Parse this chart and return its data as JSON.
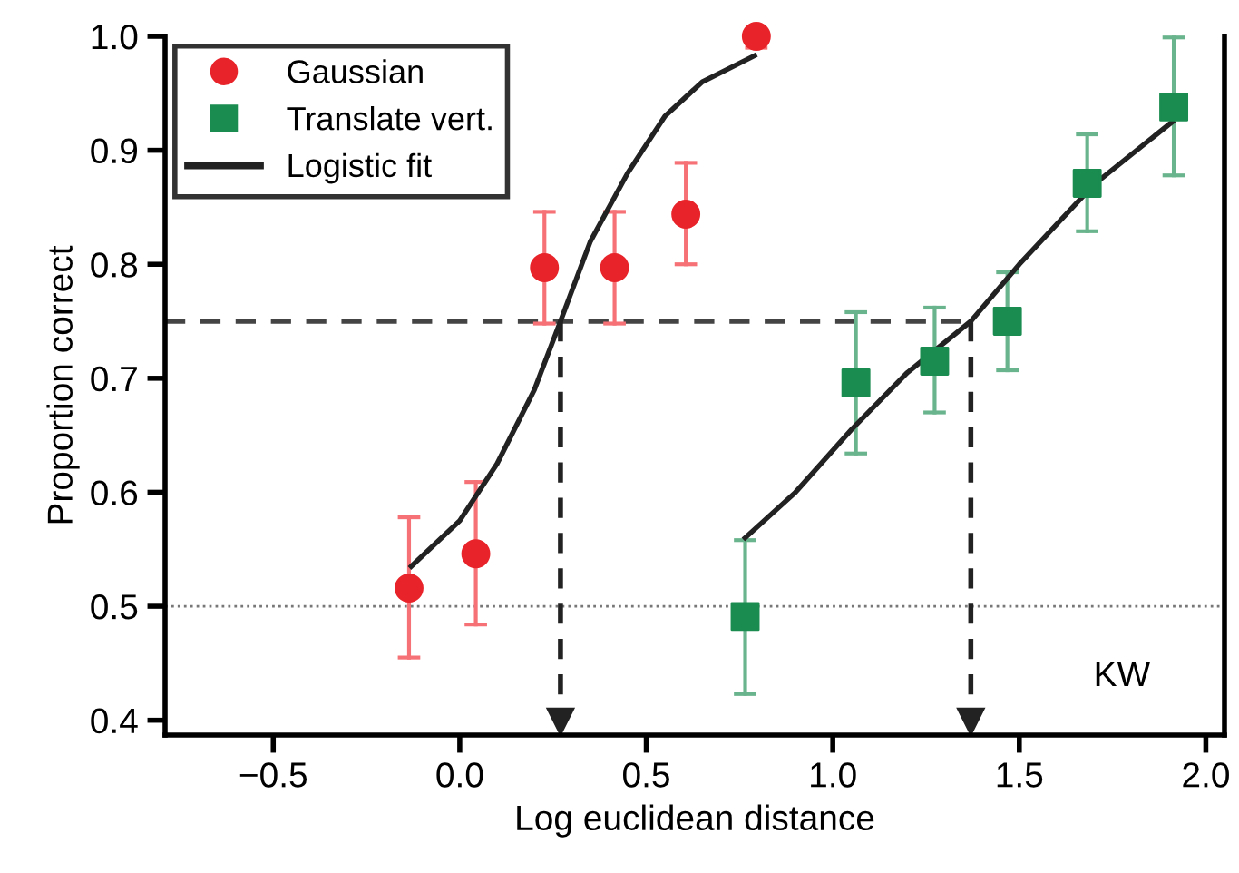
{
  "chart_data": {
    "type": "scatter",
    "xlabel": "Log euclidean distance",
    "ylabel": "Proportion correct",
    "xlim": [
      -0.79,
      2.05
    ],
    "ylim": [
      0.387,
      1.0
    ],
    "xticks": [
      {
        "value": -0.5,
        "label": "−0.5"
      },
      {
        "value": 0.0,
        "label": "0.0"
      },
      {
        "value": 0.5,
        "label": "0.5"
      },
      {
        "value": 1.0,
        "label": "1.0"
      },
      {
        "value": 1.5,
        "label": "1.5"
      },
      {
        "value": 2.0,
        "label": "2.0"
      }
    ],
    "yticks": [
      {
        "value": 0.4,
        "label": "0.4"
      },
      {
        "value": 0.5,
        "label": "0.5"
      },
      {
        "value": 0.6,
        "label": "0.6"
      },
      {
        "value": 0.7,
        "label": "0.7"
      },
      {
        "value": 0.8,
        "label": "0.8"
      },
      {
        "value": 0.9,
        "label": "0.9"
      },
      {
        "value": 1.0,
        "label": "1.0"
      }
    ],
    "grid": false,
    "legend": "top left",
    "series": [
      {
        "name": "Gaussian",
        "marker": "circle",
        "color": "#e8242a",
        "x": [
          -0.136,
          0.043,
          0.227,
          0.415,
          0.606,
          0.795
        ],
        "values": [
          0.516,
          0.546,
          0.797,
          0.797,
          0.844,
          1.0
        ],
        "errors": [
          [
            0.455,
            0.578
          ],
          [
            0.484,
            0.609
          ],
          [
            0.748,
            0.846
          ],
          [
            0.748,
            0.846
          ],
          [
            0.8,
            0.889
          ],
          [
            0.99,
            1.0
          ]
        ]
      },
      {
        "name": "Translate vert.",
        "marker": "square",
        "color": "#1a8c50",
        "x": [
          0.765,
          1.062,
          1.273,
          1.468,
          1.682,
          1.914
        ],
        "values": [
          0.491,
          0.696,
          0.715,
          0.75,
          0.871,
          0.938
        ],
        "errors": [
          [
            0.423,
            0.558
          ],
          [
            0.634,
            0.758
          ],
          [
            0.67,
            0.762
          ],
          [
            0.707,
            0.793
          ],
          [
            0.829,
            0.914
          ],
          [
            0.878,
            0.999
          ]
        ]
      },
      {
        "name": "Logistic fit",
        "type": "line",
        "marker": "none",
        "color": "#222222",
        "x": [
          -0.13,
          0.0,
          0.1,
          0.2,
          0.27,
          0.35,
          0.45,
          0.55,
          0.65,
          0.79
        ],
        "values": [
          0.535,
          0.575,
          0.625,
          0.69,
          0.75,
          0.82,
          0.88,
          0.93,
          0.96,
          0.983
        ]
      },
      {
        "type": "line",
        "marker": "none",
        "color": "#222222",
        "x": [
          0.765,
          0.9,
          1.05,
          1.2,
          1.37,
          1.5,
          1.7,
          1.91
        ],
        "values": [
          0.56,
          0.6,
          0.655,
          0.705,
          0.75,
          0.8,
          0.87,
          0.925
        ]
      }
    ],
    "ref_lines": [
      {
        "axis": "y",
        "value": 0.5,
        "line_style": "dotted",
        "color": "#777777"
      },
      {
        "axis": "y",
        "value": 0.75,
        "line_style": "dashed",
        "color": "#444444"
      },
      {
        "axis": "x",
        "value": 0.27,
        "line_style": "dashed",
        "color": "#222222"
      },
      {
        "axis": "x",
        "value": 1.37,
        "line_style": "dashed",
        "color": "#222222"
      }
    ],
    "annotations": [
      "KW"
    ]
  }
}
